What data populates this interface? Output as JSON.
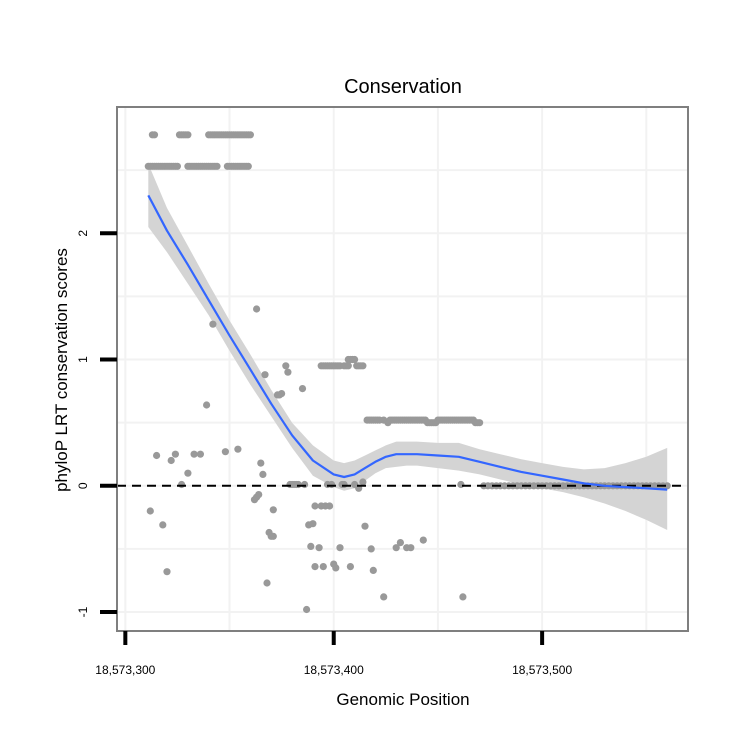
{
  "chart_data": {
    "type": "scatter",
    "title": "Conservation",
    "xlabel": "Genomic Position",
    "ylabel": "phyloP LRT conservation scores",
    "xlim": [
      18573296,
      18573570
    ],
    "ylim": [
      -1.15,
      3.0
    ],
    "x_ticks": [
      {
        "value": 18573300,
        "label": "18,573,300"
      },
      {
        "value": 18573400,
        "label": "18,573,400"
      },
      {
        "value": 18573500,
        "label": "18,573,500"
      }
    ],
    "y_ticks": [
      {
        "value": -1,
        "label": "-1"
      },
      {
        "value": 0,
        "label": "0"
      },
      {
        "value": 1,
        "label": "1"
      },
      {
        "value": 2,
        "label": "2"
      }
    ],
    "grid": true,
    "reference_line": {
      "y": 0,
      "style": "dashed",
      "color": "#000000"
    },
    "colors": {
      "points": "#999999",
      "smooth_line": "#3366ff",
      "confidence_band": "#d4d4d4",
      "panel_border": "#7f7f7f",
      "grid": "#f2f2f2"
    },
    "points_series": {
      "name": "phyloP scores",
      "points": [
        [
          18573311,
          2.53
        ],
        [
          18573312,
          2.53
        ],
        [
          18573313,
          2.53
        ],
        [
          18573314,
          2.53
        ],
        [
          18573315,
          2.53
        ],
        [
          18573316,
          2.53
        ],
        [
          18573317,
          2.53
        ],
        [
          18573318,
          2.53
        ],
        [
          18573319,
          2.53
        ],
        [
          18573320,
          2.53
        ],
        [
          18573321,
          2.53
        ],
        [
          18573322,
          2.53
        ],
        [
          18573323,
          2.53
        ],
        [
          18573324,
          2.53
        ],
        [
          18573325,
          2.53
        ],
        [
          18573313,
          2.78
        ],
        [
          18573314,
          2.78
        ],
        [
          18573326,
          2.78
        ],
        [
          18573327,
          2.78
        ],
        [
          18573328,
          2.78
        ],
        [
          18573329,
          2.78
        ],
        [
          18573330,
          2.78
        ],
        [
          18573340,
          2.78
        ],
        [
          18573341,
          2.78
        ],
        [
          18573342,
          2.78
        ],
        [
          18573343,
          2.78
        ],
        [
          18573344,
          2.78
        ],
        [
          18573345,
          2.78
        ],
        [
          18573346,
          2.78
        ],
        [
          18573347,
          2.78
        ],
        [
          18573348,
          2.78
        ],
        [
          18573349,
          2.78
        ],
        [
          18573350,
          2.78
        ],
        [
          18573351,
          2.78
        ],
        [
          18573352,
          2.78
        ],
        [
          18573353,
          2.78
        ],
        [
          18573354,
          2.78
        ],
        [
          18573355,
          2.78
        ],
        [
          18573356,
          2.78
        ],
        [
          18573357,
          2.78
        ],
        [
          18573358,
          2.78
        ],
        [
          18573359,
          2.78
        ],
        [
          18573360,
          2.78
        ],
        [
          18573330,
          2.53
        ],
        [
          18573331,
          2.53
        ],
        [
          18573332,
          2.53
        ],
        [
          18573333,
          2.53
        ],
        [
          18573334,
          2.53
        ],
        [
          18573335,
          2.53
        ],
        [
          18573336,
          2.53
        ],
        [
          18573337,
          2.53
        ],
        [
          18573338,
          2.53
        ],
        [
          18573339,
          2.53
        ],
        [
          18573340,
          2.53
        ],
        [
          18573341,
          2.53
        ],
        [
          18573342,
          2.53
        ],
        [
          18573343,
          2.53
        ],
        [
          18573344,
          2.53
        ],
        [
          18573349,
          2.53
        ],
        [
          18573350,
          2.53
        ],
        [
          18573351,
          2.53
        ],
        [
          18573352,
          2.53
        ],
        [
          18573353,
          2.53
        ],
        [
          18573354,
          2.53
        ],
        [
          18573355,
          2.53
        ],
        [
          18573356,
          2.53
        ],
        [
          18573357,
          2.53
        ],
        [
          18573358,
          2.53
        ],
        [
          18573359,
          2.53
        ],
        [
          18573312,
          -0.2
        ],
        [
          18573315,
          0.24
        ],
        [
          18573318,
          -0.31
        ],
        [
          18573320,
          -0.68
        ],
        [
          18573322,
          0.2
        ],
        [
          18573324,
          0.25
        ],
        [
          18573327,
          0.01
        ],
        [
          18573330,
          0.1
        ],
        [
          18573333,
          0.25
        ],
        [
          18573336,
          0.25
        ],
        [
          18573339,
          0.64
        ],
        [
          18573342,
          1.28
        ],
        [
          18573348,
          0.27
        ],
        [
          18573354,
          0.29
        ],
        [
          18573363,
          1.4
        ],
        [
          18573365,
          0.18
        ],
        [
          18573366,
          0.09
        ],
        [
          18573367,
          0.88
        ],
        [
          18573362,
          -0.11
        ],
        [
          18573363,
          -0.09
        ],
        [
          18573364,
          -0.07
        ],
        [
          18573368,
          -0.77
        ],
        [
          18573369,
          -0.37
        ],
        [
          18573370,
          -0.4
        ],
        [
          18573371,
          -0.4
        ],
        [
          18573371,
          -0.19
        ],
        [
          18573373,
          0.72
        ],
        [
          18573374,
          0.72
        ],
        [
          18573375,
          0.73
        ],
        [
          18573377,
          0.95
        ],
        [
          18573378,
          0.9
        ],
        [
          18573379,
          0.01
        ],
        [
          18573380,
          0.01
        ],
        [
          18573381,
          0.01
        ],
        [
          18573382,
          0.01
        ],
        [
          18573383,
          0.01
        ],
        [
          18573385,
          0.77
        ],
        [
          18573386,
          0.01
        ],
        [
          18573387,
          -0.98
        ],
        [
          18573388,
          -0.31
        ],
        [
          18573389,
          -0.48
        ],
        [
          18573390,
          -0.3
        ],
        [
          18573391,
          -0.16
        ],
        [
          18573391,
          -0.64
        ],
        [
          18573393,
          -0.49
        ],
        [
          18573394,
          -0.16
        ],
        [
          18573395,
          -0.64
        ],
        [
          18573396,
          -0.16
        ],
        [
          18573397,
          0.01
        ],
        [
          18573398,
          -0.16
        ],
        [
          18573399,
          0.01
        ],
        [
          18573394,
          0.95
        ],
        [
          18573395,
          0.95
        ],
        [
          18573396,
          0.95
        ],
        [
          18573397,
          0.95
        ],
        [
          18573398,
          0.95
        ],
        [
          18573399,
          0.95
        ],
        [
          18573400,
          0.95
        ],
        [
          18573401,
          0.95
        ],
        [
          18573402,
          0.95
        ],
        [
          18573403,
          0.95
        ],
        [
          18573405,
          0.95
        ],
        [
          18573406,
          0.95
        ],
        [
          18573407,
          0.95
        ],
        [
          18573400,
          -0.62
        ],
        [
          18573401,
          -0.65
        ],
        [
          18573403,
          -0.49
        ],
        [
          18573404,
          0.01
        ],
        [
          18573405,
          0.01
        ],
        [
          18573407,
          1.0
        ],
        [
          18573408,
          1.0
        ],
        [
          18573409,
          1.0
        ],
        [
          18573410,
          1.0
        ],
        [
          18573411,
          0.95
        ],
        [
          18573412,
          0.95
        ],
        [
          18573413,
          0.95
        ],
        [
          18573414,
          0.95
        ],
        [
          18573408,
          -0.64
        ],
        [
          18573410,
          0.01
        ],
        [
          18573412,
          -0.02
        ],
        [
          18573414,
          0.03
        ],
        [
          18573415,
          -0.32
        ],
        [
          18573416,
          0.52
        ],
        [
          18573417,
          0.52
        ],
        [
          18573418,
          0.52
        ],
        [
          18573419,
          0.52
        ],
        [
          18573420,
          0.52
        ],
        [
          18573421,
          0.52
        ],
        [
          18573422,
          0.52
        ],
        [
          18573424,
          0.52
        ],
        [
          18573418,
          -0.5
        ],
        [
          18573419,
          -0.67
        ],
        [
          18573424,
          -0.88
        ],
        [
          18573426,
          0.5
        ],
        [
          18573427,
          0.52
        ],
        [
          18573428,
          0.52
        ],
        [
          18573429,
          0.52
        ],
        [
          18573430,
          0.52
        ],
        [
          18573431,
          0.52
        ],
        [
          18573432,
          0.52
        ],
        [
          18573433,
          0.52
        ],
        [
          18573434,
          0.52
        ],
        [
          18573435,
          0.52
        ],
        [
          18573436,
          0.52
        ],
        [
          18573437,
          0.52
        ],
        [
          18573438,
          0.52
        ],
        [
          18573439,
          0.52
        ],
        [
          18573440,
          0.52
        ],
        [
          18573441,
          0.52
        ],
        [
          18573442,
          0.52
        ],
        [
          18573443,
          0.52
        ],
        [
          18573444,
          0.52
        ],
        [
          18573445,
          0.5
        ],
        [
          18573446,
          0.5
        ],
        [
          18573447,
          0.5
        ],
        [
          18573448,
          0.5
        ],
        [
          18573449,
          0.5
        ],
        [
          18573450,
          0.52
        ],
        [
          18573451,
          0.52
        ],
        [
          18573452,
          0.52
        ],
        [
          18573453,
          0.52
        ],
        [
          18573454,
          0.52
        ],
        [
          18573455,
          0.52
        ],
        [
          18573456,
          0.52
        ],
        [
          18573457,
          0.52
        ],
        [
          18573458,
          0.52
        ],
        [
          18573459,
          0.52
        ],
        [
          18573460,
          0.52
        ],
        [
          18573461,
          0.52
        ],
        [
          18573462,
          0.52
        ],
        [
          18573463,
          0.52
        ],
        [
          18573464,
          0.52
        ],
        [
          18573465,
          0.52
        ],
        [
          18573466,
          0.52
        ],
        [
          18573467,
          0.52
        ],
        [
          18573468,
          0.5
        ],
        [
          18573469,
          0.5
        ],
        [
          18573470,
          0.5
        ],
        [
          18573430,
          -0.49
        ],
        [
          18573432,
          -0.45
        ],
        [
          18573435,
          -0.49
        ],
        [
          18573437,
          -0.49
        ],
        [
          18573443,
          -0.43
        ],
        [
          18573461,
          0.01
        ],
        [
          18573462,
          -0.88
        ],
        [
          18573472,
          0.0
        ],
        [
          18573474,
          0.0
        ],
        [
          18573476,
          0.0
        ],
        [
          18573478,
          0.0
        ],
        [
          18573480,
          0.0
        ],
        [
          18573482,
          0.0
        ],
        [
          18573484,
          0.0
        ],
        [
          18573486,
          0.0
        ],
        [
          18573488,
          0.0
        ],
        [
          18573490,
          0.0
        ],
        [
          18573492,
          0.0
        ],
        [
          18573494,
          0.0
        ],
        [
          18573496,
          0.0
        ],
        [
          18573498,
          0.0
        ],
        [
          18573500,
          0.0
        ],
        [
          18573502,
          0.0
        ],
        [
          18573504,
          0.0
        ],
        [
          18573506,
          0.0
        ],
        [
          18573508,
          0.0
        ],
        [
          18573510,
          0.0
        ],
        [
          18573512,
          0.0
        ],
        [
          18573514,
          0.0
        ],
        [
          18573516,
          0.0
        ],
        [
          18573518,
          0.0
        ],
        [
          18573520,
          0.0
        ],
        [
          18573522,
          0.0
        ],
        [
          18573524,
          0.0
        ],
        [
          18573526,
          0.0
        ],
        [
          18573528,
          0.0
        ],
        [
          18573530,
          0.0
        ],
        [
          18573532,
          0.0
        ],
        [
          18573534,
          0.0
        ],
        [
          18573536,
          0.0
        ],
        [
          18573538,
          0.0
        ],
        [
          18573540,
          0.0
        ],
        [
          18573542,
          0.0
        ],
        [
          18573544,
          0.0
        ],
        [
          18573546,
          0.0
        ],
        [
          18573548,
          0.0
        ],
        [
          18573550,
          0.0
        ],
        [
          18573552,
          0.0
        ],
        [
          18573554,
          0.0
        ],
        [
          18573556,
          0.0
        ],
        [
          18573558,
          0.0
        ],
        [
          18573560,
          0.0
        ]
      ]
    },
    "smooth_series": {
      "name": "loess fit",
      "x": [
        18573311,
        18573320,
        18573330,
        18573340,
        18573350,
        18573360,
        18573370,
        18573380,
        18573390,
        18573400,
        18573405,
        18573410,
        18573415,
        18573420,
        18573425,
        18573430,
        18573435,
        18573440,
        18573450,
        18573460,
        18573470,
        18573480,
        18573490,
        18573500,
        18573510,
        18573520,
        18573530,
        18573540,
        18573550,
        18573560
      ],
      "y": [
        2.3,
        2.02,
        1.75,
        1.47,
        1.19,
        0.92,
        0.65,
        0.4,
        0.2,
        0.09,
        0.07,
        0.09,
        0.14,
        0.19,
        0.23,
        0.25,
        0.25,
        0.25,
        0.24,
        0.23,
        0.19,
        0.15,
        0.11,
        0.08,
        0.05,
        0.02,
        0.0,
        -0.01,
        -0.02,
        -0.03
      ],
      "lower": [
        2.05,
        1.85,
        1.6,
        1.35,
        1.07,
        0.8,
        0.55,
        0.3,
        0.08,
        -0.01,
        -0.04,
        -0.02,
        0.04,
        0.1,
        0.14,
        0.15,
        0.16,
        0.16,
        0.14,
        0.12,
        0.09,
        0.05,
        0.01,
        -0.02,
        -0.05,
        -0.09,
        -0.14,
        -0.2,
        -0.27,
        -0.35
      ],
      "upper": [
        2.55,
        2.2,
        1.9,
        1.6,
        1.31,
        1.04,
        0.76,
        0.5,
        0.32,
        0.2,
        0.18,
        0.2,
        0.24,
        0.28,
        0.32,
        0.35,
        0.35,
        0.35,
        0.34,
        0.34,
        0.29,
        0.25,
        0.21,
        0.18,
        0.15,
        0.13,
        0.14,
        0.18,
        0.23,
        0.3
      ]
    }
  }
}
